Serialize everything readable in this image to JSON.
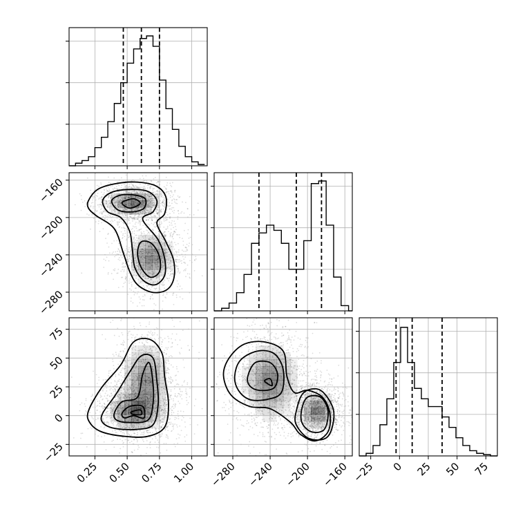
{
  "chart_data": {
    "type": "corner",
    "parameters": [
      "p0",
      "p1",
      "p2"
    ],
    "axis_ranges": {
      "p0": [
        0.05,
        1.12
      ],
      "p1": [
        -300,
        -152
      ],
      "p2": [
        -35,
        85
      ]
    },
    "ticks": {
      "p0": {
        "values": [
          0.25,
          0.5,
          0.75,
          1.0
        ],
        "labels": [
          "0.25",
          "0.50",
          "0.75",
          "1.00"
        ]
      },
      "p1": {
        "values": [
          -280,
          -240,
          -200,
          -160
        ],
        "labels": [
          "−280",
          "−240",
          "−200",
          "−160"
        ]
      },
      "p2": {
        "values": [
          -25,
          0,
          25,
          50,
          75
        ],
        "labels": [
          "−25",
          "0",
          "25",
          "50",
          "75"
        ]
      }
    },
    "histograms": [
      {
        "param": "p0",
        "bin_edges": [
          0.05,
          0.1,
          0.15,
          0.2,
          0.25,
          0.3,
          0.35,
          0.4,
          0.45,
          0.5,
          0.55,
          0.6,
          0.65,
          0.7,
          0.75,
          0.8,
          0.85,
          0.9,
          0.95,
          1.0,
          1.05,
          1.1
        ],
        "counts": [
          0,
          0.02,
          0.04,
          0.07,
          0.14,
          0.22,
          0.34,
          0.48,
          0.64,
          0.79,
          0.9,
          0.98,
          1.0,
          0.92,
          0.66,
          0.44,
          0.28,
          0.15,
          0.07,
          0.03,
          0.01
        ],
        "quantiles": [
          0.47,
          0.61,
          0.75
        ],
        "ytick_fractions": [
          0.32,
          0.64,
          0.96
        ]
      },
      {
        "param": "p1",
        "bin_edges": [
          -300,
          -292,
          -284,
          -276,
          -268,
          -260,
          -252,
          -244,
          -236,
          -228,
          -220,
          -212,
          -204,
          -196,
          -188,
          -180,
          -172,
          -164,
          -156,
          -152
        ],
        "counts": [
          0,
          0.02,
          0.06,
          0.14,
          0.28,
          0.52,
          0.6,
          0.66,
          0.62,
          0.52,
          0.32,
          0.32,
          0.54,
          0.98,
          1.0,
          0.66,
          0.26,
          0.04,
          0
        ],
        "quantiles": [
          -252,
          -212,
          -185
        ],
        "ytick_fractions": [
          0.32,
          0.64,
          0.96
        ]
      },
      {
        "param": "p2",
        "bin_edges": [
          -35,
          -29,
          -23,
          -17,
          -11,
          -5,
          1,
          7,
          13,
          19,
          25,
          31,
          37,
          43,
          49,
          55,
          61,
          67,
          73,
          79,
          85
        ],
        "counts": [
          0,
          0.02,
          0.08,
          0.24,
          0.44,
          0.72,
          0.99,
          0.72,
          0.52,
          0.44,
          0.38,
          0.38,
          0.3,
          0.22,
          0.14,
          0.08,
          0.04,
          0.02,
          0.01,
          0
        ],
        "quantiles": [
          -3,
          11,
          37
        ],
        "ytick_fractions": [
          0.32,
          0.64,
          0.96
        ]
      }
    ],
    "panels_2d": [
      {
        "x": "p0",
        "y": "p1",
        "modes": [
          {
            "cx": 0.55,
            "cy": -184,
            "sx": 0.1,
            "sy": 7,
            "weight": 0.52
          },
          {
            "cx": 0.68,
            "cy": -243,
            "sx": 0.085,
            "sy": 13,
            "weight": 0.48
          }
        ],
        "outer_contour": [
          [
            0.2,
            -182
          ],
          [
            0.27,
            -170
          ],
          [
            0.4,
            -164
          ],
          [
            0.56,
            -162
          ],
          [
            0.72,
            -166
          ],
          [
            0.8,
            -178
          ],
          [
            0.79,
            -196
          ],
          [
            0.73,
            -206
          ],
          [
            0.8,
            -226
          ],
          [
            0.86,
            -246
          ],
          [
            0.86,
            -266
          ],
          [
            0.8,
            -278
          ],
          [
            0.69,
            -280
          ],
          [
            0.58,
            -272
          ],
          [
            0.52,
            -258
          ],
          [
            0.47,
            -238
          ],
          [
            0.4,
            -212
          ],
          [
            0.26,
            -198
          ],
          [
            0.2,
            -190
          ]
        ],
        "mid_contour": [
          [
            0.31,
            -182
          ],
          [
            0.38,
            -173
          ],
          [
            0.52,
            -170
          ],
          [
            0.66,
            -172
          ],
          [
            0.73,
            -182
          ],
          [
            0.7,
            -194
          ],
          [
            0.62,
            -202
          ],
          [
            0.74,
            -224
          ],
          [
            0.79,
            -244
          ],
          [
            0.79,
            -262
          ],
          [
            0.72,
            -272
          ],
          [
            0.63,
            -268
          ],
          [
            0.56,
            -254
          ],
          [
            0.54,
            -234
          ],
          [
            0.52,
            -215
          ],
          [
            0.45,
            -200
          ],
          [
            0.35,
            -194
          ]
        ],
        "inner_contour_a": [
          [
            0.38,
            -182
          ],
          [
            0.45,
            -176
          ],
          [
            0.56,
            -176
          ],
          [
            0.64,
            -180
          ],
          [
            0.63,
            -190
          ],
          [
            0.54,
            -194
          ],
          [
            0.43,
            -192
          ]
        ],
        "inner_contour_b": [
          [
            0.61,
            -226
          ],
          [
            0.69,
            -228
          ],
          [
            0.75,
            -242
          ],
          [
            0.75,
            -258
          ],
          [
            0.68,
            -264
          ],
          [
            0.61,
            -254
          ],
          [
            0.58,
            -238
          ]
        ],
        "core_contour": [
          [
            0.46,
            -184
          ],
          [
            0.55,
            -180
          ],
          [
            0.6,
            -185
          ],
          [
            0.52,
            -190
          ]
        ]
      },
      {
        "x": "p0",
        "y": "p2",
        "modes": [
          {
            "cx": 0.56,
            "cy": 4,
            "sx": 0.1,
            "sy": 8,
            "weight": 0.55
          },
          {
            "cx": 0.64,
            "cy": 30,
            "sx": 0.09,
            "sy": 16,
            "weight": 0.45
          }
        ],
        "outer_contour": [
          [
            0.2,
            4
          ],
          [
            0.3,
            24
          ],
          [
            0.45,
            44
          ],
          [
            0.55,
            64
          ],
          [
            0.68,
            66
          ],
          [
            0.77,
            54
          ],
          [
            0.79,
            34
          ],
          [
            0.82,
            10
          ],
          [
            0.79,
            -10
          ],
          [
            0.66,
            -18
          ],
          [
            0.48,
            -18
          ],
          [
            0.3,
            -14
          ],
          [
            0.21,
            -6
          ]
        ],
        "mid_contour": [
          [
            0.31,
            2
          ],
          [
            0.41,
            18
          ],
          [
            0.52,
            38
          ],
          [
            0.61,
            52
          ],
          [
            0.7,
            50
          ],
          [
            0.73,
            30
          ],
          [
            0.74,
            10
          ],
          [
            0.7,
            -8
          ],
          [
            0.57,
            -12
          ],
          [
            0.4,
            -11
          ],
          [
            0.31,
            -6
          ]
        ],
        "inner_contour_a": [
          [
            0.4,
            2
          ],
          [
            0.46,
            12
          ],
          [
            0.58,
            16
          ],
          [
            0.62,
            36
          ],
          [
            0.67,
            46
          ],
          [
            0.7,
            28
          ],
          [
            0.7,
            10
          ],
          [
            0.66,
            -4
          ],
          [
            0.52,
            -6
          ],
          [
            0.42,
            -4
          ]
        ],
        "inner_contour_b": [
          [
            0.46,
            2
          ],
          [
            0.52,
            8
          ],
          [
            0.62,
            8
          ],
          [
            0.63,
            -2
          ],
          [
            0.55,
            0
          ],
          [
            0.48,
            -2
          ]
        ],
        "core_contour": [
          [
            0.53,
            3
          ],
          [
            0.6,
            5
          ],
          [
            0.61,
            1
          ],
          [
            0.55,
            1
          ]
        ]
      },
      {
        "x": "p1",
        "y": "p2",
        "modes": [
          {
            "cx": -240,
            "cy": 30,
            "sx": 14,
            "sy": 16,
            "weight": 0.5
          },
          {
            "cx": -190,
            "cy": 4,
            "sx": 9,
            "sy": 8,
            "weight": 0.5
          }
        ],
        "outer_contour": [
          [
            -290,
            35
          ],
          [
            -284,
            50
          ],
          [
            -268,
            62
          ],
          [
            -246,
            64
          ],
          [
            -226,
            56
          ],
          [
            -222,
            34
          ],
          [
            -214,
            20
          ],
          [
            -200,
            22
          ],
          [
            -184,
            16
          ],
          [
            -176,
            2
          ],
          [
            -178,
            -14
          ],
          [
            -192,
            -22
          ],
          [
            -208,
            -16
          ],
          [
            -218,
            -6
          ],
          [
            -240,
            6
          ],
          [
            -262,
            8
          ],
          [
            -282,
            18
          ]
        ],
        "mid_contour": [
          [
            -278,
            34
          ],
          [
            -272,
            48
          ],
          [
            -254,
            56
          ],
          [
            -236,
            54
          ],
          [
            -226,
            40
          ],
          [
            -228,
            20
          ],
          [
            -244,
            14
          ],
          [
            -262,
            14
          ],
          [
            -274,
            22
          ]
        ],
        "inner_contour_a": [
          [
            -264,
            34
          ],
          [
            -256,
            46
          ],
          [
            -240,
            46
          ],
          [
            -232,
            36
          ],
          [
            -236,
            24
          ],
          [
            -252,
            22
          ],
          [
            -262,
            26
          ]
        ],
        "inner_contour_b": [
          [
            -206,
            6
          ],
          [
            -200,
            16
          ],
          [
            -186,
            16
          ],
          [
            -178,
            4
          ],
          [
            -182,
            -12
          ],
          [
            -196,
            -14
          ],
          [
            -206,
            -6
          ]
        ],
        "mid_contour_b": [
          [
            -212,
            4
          ],
          [
            -204,
            20
          ],
          [
            -186,
            22
          ],
          [
            -172,
            4
          ],
          [
            -178,
            -18
          ],
          [
            -198,
            -20
          ],
          [
            -212,
            -8
          ]
        ],
        "core_contour": [
          [
            -246,
            30
          ],
          [
            -240,
            32
          ],
          [
            -238,
            26
          ]
        ]
      }
    ]
  }
}
